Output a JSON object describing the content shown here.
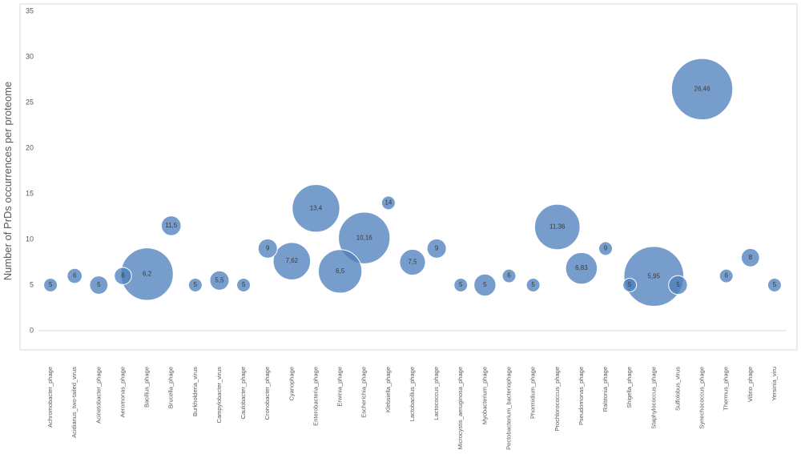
{
  "chart_data": {
    "type": "bubble",
    "ylabel": "Number of PrDs occurrences per proteome",
    "ylim": [
      0,
      35
    ],
    "y_ticks": [
      "0",
      "5",
      "10",
      "15",
      "20",
      "25",
      "30",
      "35"
    ],
    "grid": false,
    "legend": "none",
    "bubble_color": "#4f81bd",
    "categories": [
      "Achromobacter_phage",
      "Acidianus_two-tailed_virus",
      "Acinetobacter_phage",
      "Aeromonas_phage",
      "Bacillus_phage",
      "Brucella_phage",
      "Burkholderia_virus",
      "Campylobacter_virus",
      "Caulobacter_phage",
      "Cronobacter_phage",
      "Cyanophage",
      "Enterobacteria_phage",
      "Erwinia_phage",
      "Escherichia_phage",
      "Klebsiella_phage",
      "Lactobacillus_phage",
      "Lactococcus_phage",
      "Microcystis_aeruginosa_phage",
      "Myobacterium_phage",
      "Pectobacterium_bacteriophage",
      "Phormidium_phage",
      "Prochlorococcus_phage",
      "Pseudomonas_phage",
      "Ralstonia_phage",
      "Shigella_phage",
      "Staphylococcus_phage",
      "Sulfolobus_virus",
      "Synechococcus_phage",
      "Thermus_phage",
      "Vibrio_phage",
      "Yersinia_viru"
    ],
    "values": [
      5,
      6,
      5,
      6,
      6.2,
      11.5,
      5,
      5.5,
      5,
      9,
      7.62,
      13.4,
      6.5,
      10.16,
      14,
      7.5,
      9,
      5,
      5,
      6,
      5,
      11.36,
      6.83,
      9,
      5,
      5.95,
      5,
      26.46,
      6,
      8,
      5
    ],
    "labels": [
      "5",
      "6",
      "5",
      "6",
      "6,2",
      "11,5",
      "5",
      "5,5",
      "5",
      "9",
      "7,62",
      "13,4",
      "6,5",
      "10,16",
      "14",
      "7,5",
      "9",
      "5",
      "5",
      "6",
      "5",
      "11,36",
      "6,83",
      "9",
      "5",
      "5,95",
      "5",
      "26,46",
      "6",
      "8",
      "5"
    ],
    "sizes": [
      1,
      1.2,
      1.8,
      1.6,
      14.8,
      2.1,
      1,
      2,
      1,
      2,
      7.5,
      12.2,
      10.2,
      14.3,
      1,
      3.6,
      2,
      1,
      2.6,
      1,
      1,
      11.1,
      5.4,
      1,
      1,
      19.3,
      1.9,
      20.2,
      1,
      1.8,
      1
    ]
  }
}
